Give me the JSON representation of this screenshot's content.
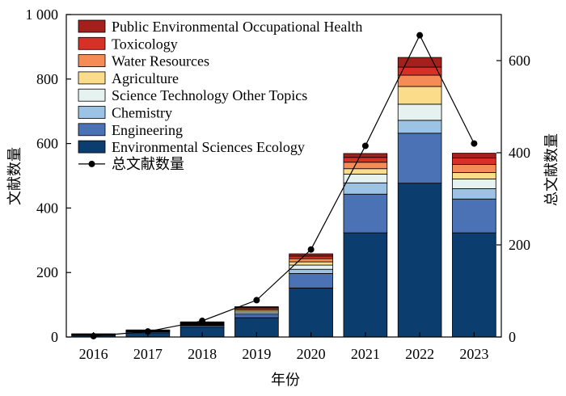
{
  "chart_data": {
    "type": "bar",
    "stacked": true,
    "xlabel": "年份",
    "ylabel_left": "文献数量",
    "ylabel_right": "总文献数量",
    "categories": [
      "2016",
      "2017",
      "2018",
      "2019",
      "2020",
      "2021",
      "2022",
      "2023"
    ],
    "ylim_left": [
      0,
      1000
    ],
    "yticks_left": [
      0,
      200,
      400,
      600,
      800,
      1000
    ],
    "yticklabels_left": [
      "0",
      "200",
      "400",
      "600",
      "800",
      "1 000"
    ],
    "ylim_right": [
      0,
      700
    ],
    "yticks_right": [
      0,
      200,
      400,
      600
    ],
    "yticklabels_right": [
      "0",
      "200",
      "400",
      "600"
    ],
    "legend_position": "top-left",
    "grid": false,
    "series": [
      {
        "name": "Environmental Sciences Ecology",
        "color": "#0b3d6e",
        "values": [
          5,
          13,
          30,
          60,
          152,
          323,
          477,
          323
        ]
      },
      {
        "name": "Engineering",
        "color": "#4a72b5",
        "values": [
          1,
          3,
          5,
          10,
          45,
          120,
          155,
          105
        ]
      },
      {
        "name": "Chemistry",
        "color": "#9dc3e4",
        "values": [
          1,
          1,
          2,
          5,
          13,
          35,
          40,
          32
        ]
      },
      {
        "name": "Science Technology Other Topics",
        "color": "#e5f2f0",
        "values": [
          1,
          1,
          2,
          5,
          13,
          27,
          50,
          30
        ]
      },
      {
        "name": "Agriculture",
        "color": "#fadc8a",
        "values": [
          1,
          1,
          2,
          4,
          10,
          17,
          55,
          20
        ]
      },
      {
        "name": "Water Resources",
        "color": "#f58c56",
        "values": [
          1,
          1,
          2,
          4,
          10,
          20,
          35,
          25
        ]
      },
      {
        "name": "Toxicology",
        "color": "#d73027",
        "values": [
          0,
          1,
          2,
          3,
          8,
          15,
          25,
          20
        ]
      },
      {
        "name": "Public Environmental Occupational Health",
        "color": "#a3201d",
        "values": [
          0,
          1,
          2,
          3,
          7,
          12,
          30,
          15
        ]
      }
    ],
    "line_series": {
      "name": "总文献数量",
      "axis": "right",
      "color": "#000000",
      "values": [
        2,
        12,
        35,
        80,
        190,
        415,
        655,
        420
      ]
    }
  }
}
